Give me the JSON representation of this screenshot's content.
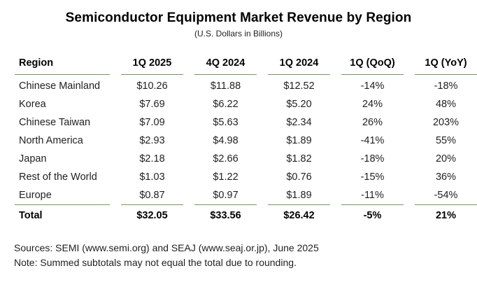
{
  "title": "Semiconductor Equipment Market Revenue by Region",
  "subtitle": "(U.S. Dollars in Billions)",
  "colors": {
    "accent_line_green": "#72995c",
    "text": "#1f1f1f",
    "background": "#ffffff"
  },
  "table": {
    "headers": [
      "Region",
      "1Q 2025",
      "4Q 2024",
      "1Q 2024",
      "1Q (QoQ)",
      "1Q (YoY)"
    ],
    "rows": [
      [
        "Chinese Mainland",
        "$10.26",
        "$11.88",
        "$12.52",
        "-14%",
        "-18%"
      ],
      [
        "Korea",
        "$7.69",
        "$6.22",
        "$5.20",
        "24%",
        "48%"
      ],
      [
        "Chinese Taiwan",
        "$7.09",
        "$5.63",
        "$2.34",
        "26%",
        "203%"
      ],
      [
        "North America",
        "$2.93",
        "$4.98",
        "$1.89",
        "-41%",
        "55%"
      ],
      [
        "Japan",
        "$2.18",
        "$2.66",
        "$1.82",
        "-18%",
        "20%"
      ],
      [
        "Rest of the World",
        "$1.03",
        "$1.22",
        "$0.76",
        "-15%",
        "36%"
      ],
      [
        "Europe",
        "$0.87",
        "$0.97",
        "$1.89",
        "-11%",
        "-54%"
      ]
    ],
    "total": [
      "Total",
      "$32.05",
      "$33.56",
      "$26.42",
      "-5%",
      "21%"
    ]
  },
  "footer": {
    "sources": "Sources: SEMI (www.semi.org) and SEAJ (www.seaj.or.jp), June 2025",
    "note": "Note: Summed subtotals may not equal the total due to rounding."
  },
  "chart_data": {
    "type": "table",
    "title": "Semiconductor Equipment Market Revenue by Region",
    "subtitle": "(U.S. Dollars in Billions)",
    "columns": [
      "Region",
      "1Q 2025",
      "4Q 2024",
      "1Q 2024",
      "1Q (QoQ)",
      "1Q (YoY)"
    ],
    "rows": [
      {
        "region": "Chinese Mainland",
        "q1_2025_usd_b": 10.26,
        "q4_2024_usd_b": 11.88,
        "q1_2024_usd_b": 12.52,
        "qoq_pct": -14,
        "yoy_pct": -18
      },
      {
        "region": "Korea",
        "q1_2025_usd_b": 7.69,
        "q4_2024_usd_b": 6.22,
        "q1_2024_usd_b": 5.2,
        "qoq_pct": 24,
        "yoy_pct": 48
      },
      {
        "region": "Chinese Taiwan",
        "q1_2025_usd_b": 7.09,
        "q4_2024_usd_b": 5.63,
        "q1_2024_usd_b": 2.34,
        "qoq_pct": 26,
        "yoy_pct": 203
      },
      {
        "region": "North America",
        "q1_2025_usd_b": 2.93,
        "q4_2024_usd_b": 4.98,
        "q1_2024_usd_b": 1.89,
        "qoq_pct": -41,
        "yoy_pct": 55
      },
      {
        "region": "Japan",
        "q1_2025_usd_b": 2.18,
        "q4_2024_usd_b": 2.66,
        "q1_2024_usd_b": 1.82,
        "qoq_pct": -18,
        "yoy_pct": 20
      },
      {
        "region": "Rest of the World",
        "q1_2025_usd_b": 1.03,
        "q4_2024_usd_b": 1.22,
        "q1_2024_usd_b": 0.76,
        "qoq_pct": -15,
        "yoy_pct": 36
      },
      {
        "region": "Europe",
        "q1_2025_usd_b": 0.87,
        "q4_2024_usd_b": 0.97,
        "q1_2024_usd_b": 1.89,
        "qoq_pct": -11,
        "yoy_pct": -54
      }
    ],
    "total": {
      "region": "Total",
      "q1_2025_usd_b": 32.05,
      "q4_2024_usd_b": 33.56,
      "q1_2024_usd_b": 26.42,
      "qoq_pct": -5,
      "yoy_pct": 21
    }
  }
}
